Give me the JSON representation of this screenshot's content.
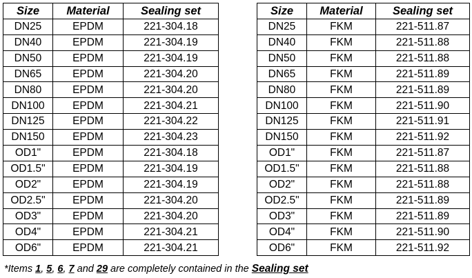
{
  "headers": {
    "size": "Size",
    "material": "Material",
    "sealing_set": "Sealing set"
  },
  "left_rows": [
    {
      "size": "DN25",
      "material": "EPDM",
      "sealing_set": "221-304.18"
    },
    {
      "size": "DN40",
      "material": "EPDM",
      "sealing_set": "221-304.19"
    },
    {
      "size": "DN50",
      "material": "EPDM",
      "sealing_set": "221-304.19"
    },
    {
      "size": "DN65",
      "material": "EPDM",
      "sealing_set": "221-304.20"
    },
    {
      "size": "DN80",
      "material": "EPDM",
      "sealing_set": "221-304.20"
    },
    {
      "size": "DN100",
      "material": "EPDM",
      "sealing_set": "221-304.21"
    },
    {
      "size": "DN125",
      "material": "EPDM",
      "sealing_set": "221-304.22"
    },
    {
      "size": "DN150",
      "material": "EPDM",
      "sealing_set": "221-304.23"
    },
    {
      "size": "OD1\"",
      "material": "EPDM",
      "sealing_set": "221-304.18"
    },
    {
      "size": "OD1.5\"",
      "material": "EPDM",
      "sealing_set": "221-304.19"
    },
    {
      "size": "OD2\"",
      "material": "EPDM",
      "sealing_set": "221-304.19"
    },
    {
      "size": "OD2.5\"",
      "material": "EPDM",
      "sealing_set": "221-304.20"
    },
    {
      "size": "OD3\"",
      "material": "EPDM",
      "sealing_set": "221-304.20"
    },
    {
      "size": "OD4\"",
      "material": "EPDM",
      "sealing_set": "221-304.21"
    },
    {
      "size": "OD6\"",
      "material": "EPDM",
      "sealing_set": "221-304.21"
    }
  ],
  "right_rows": [
    {
      "size": "DN25",
      "material": "FKM",
      "sealing_set": "221-511.87"
    },
    {
      "size": "DN40",
      "material": "FKM",
      "sealing_set": "221-511.88"
    },
    {
      "size": "DN50",
      "material": "FKM",
      "sealing_set": "221-511.88"
    },
    {
      "size": "DN65",
      "material": "FKM",
      "sealing_set": "221-511.89"
    },
    {
      "size": "DN80",
      "material": "FKM",
      "sealing_set": "221-511.89"
    },
    {
      "size": "DN100",
      "material": "FKM",
      "sealing_set": "221-511.90"
    },
    {
      "size": "DN125",
      "material": "FKM",
      "sealing_set": "221-511.91"
    },
    {
      "size": "DN150",
      "material": "FKM",
      "sealing_set": "221-511.92"
    },
    {
      "size": "OD1\"",
      "material": "FKM",
      "sealing_set": "221-511.87"
    },
    {
      "size": "OD1.5\"",
      "material": "FKM",
      "sealing_set": "221-511.88"
    },
    {
      "size": "OD2\"",
      "material": "FKM",
      "sealing_set": "221-511.88"
    },
    {
      "size": "OD2.5\"",
      "material": "FKM",
      "sealing_set": "221-511.89"
    },
    {
      "size": "OD3\"",
      "material": "FKM",
      "sealing_set": "221-511.89"
    },
    {
      "size": "OD4\"",
      "material": "FKM",
      "sealing_set": "221-511.90"
    },
    {
      "size": "OD6\"",
      "material": "FKM",
      "sealing_set": "221-511.92"
    }
  ],
  "footnote": {
    "prefix": "*Items ",
    "items": [
      "1",
      "5",
      "6",
      "7"
    ],
    "separator": ", ",
    "and_text": " and ",
    "last_item": "29",
    "middle": " are completely contained in the ",
    "set_label": "Sealing set"
  }
}
